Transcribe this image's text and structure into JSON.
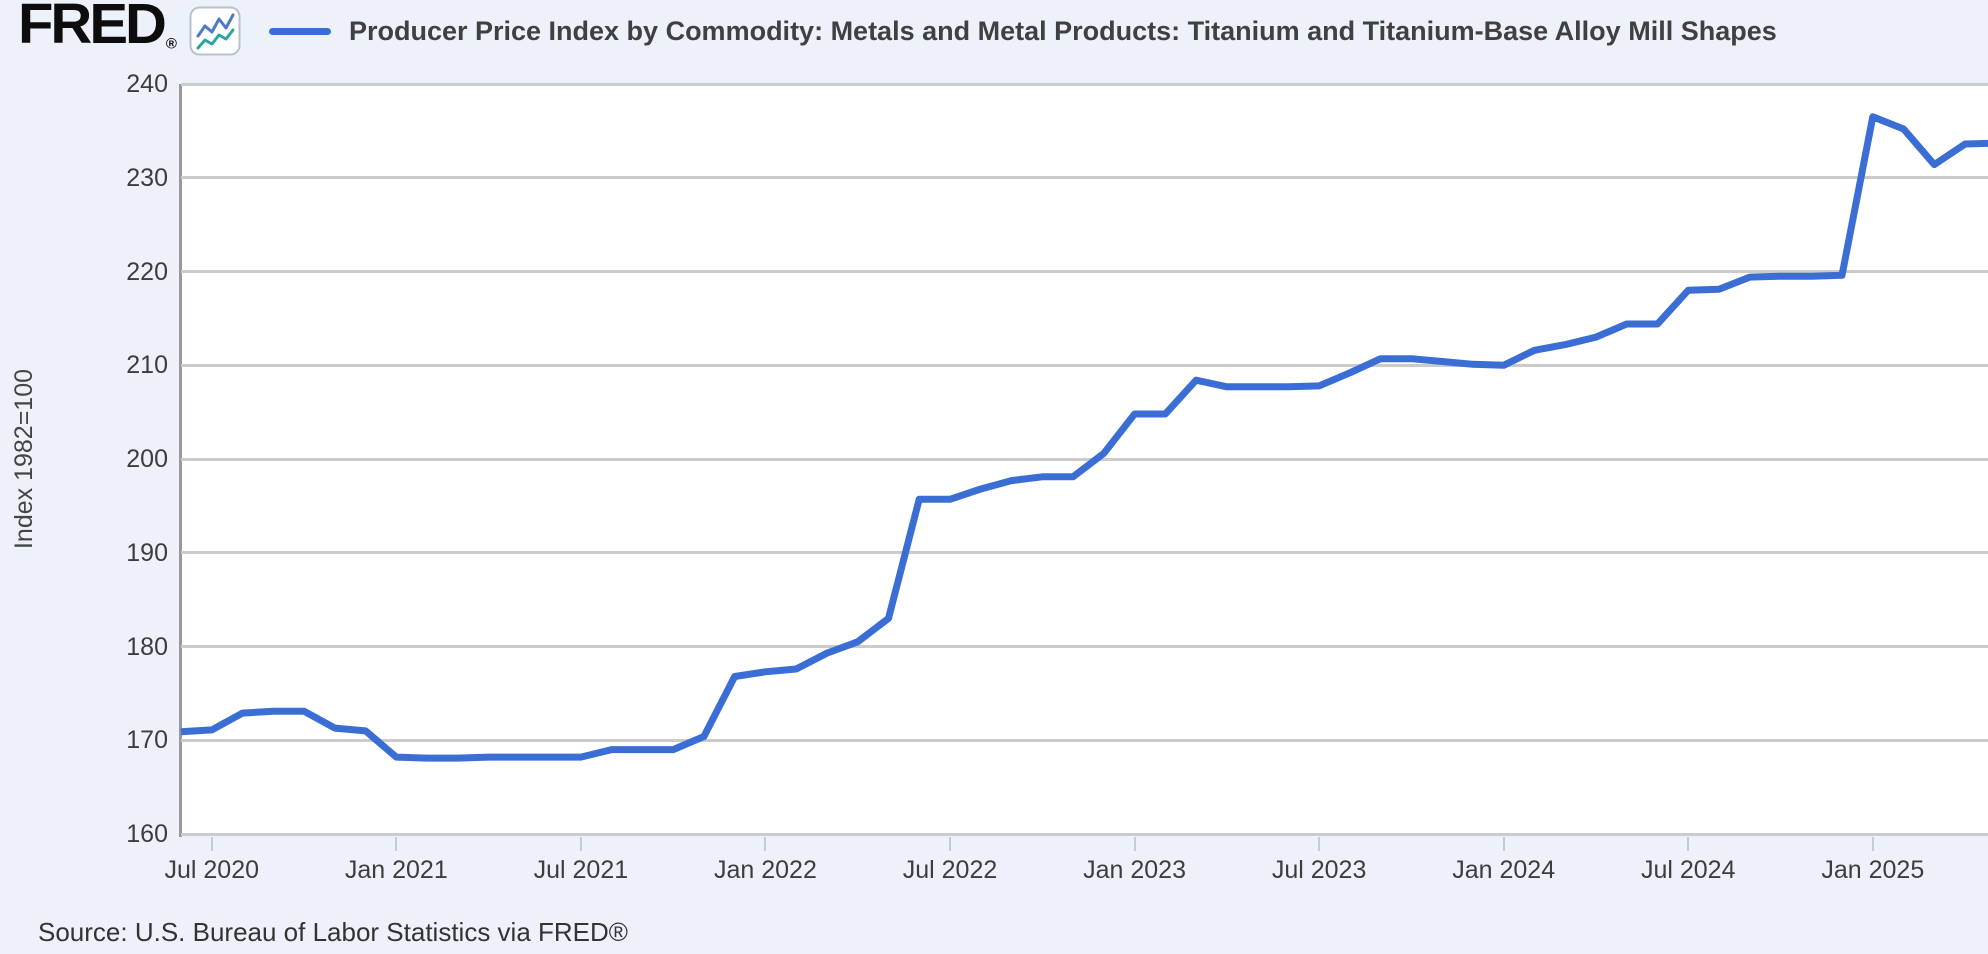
{
  "header": {
    "logo_text": "FRED",
    "registered_mark": "®",
    "series_title": "Producer Price Index by Commodity: Metals and Metal Products: Titanium and Titanium-Base Alloy Mill Shapes"
  },
  "y_axis": {
    "title": "Index 1982=100"
  },
  "source": {
    "text": "Source: U.S. Bureau of Labor Statistics via FRED®"
  },
  "colors": {
    "line": "#3b6ed4",
    "grid": "#cbcbcb",
    "axis_border": "#97979c",
    "background": "#edf2fa",
    "plot_background": "#ffffff",
    "tick": "#c3cbd6",
    "text_dark": "#3d3d3d",
    "logo_icon_blue": "#4e79c8",
    "logo_icon_teal": "#2aa5a0"
  },
  "chart_data": {
    "type": "line",
    "title": "Producer Price Index by Commodity: Metals and Metal Products: Titanium and Titanium-Base Alloy Mill Shapes",
    "xlabel": "",
    "ylabel": "Index 1982=100",
    "ylim": [
      160,
      240
    ],
    "grid": "horizontal",
    "legend_position": "top-left",
    "y_ticks": [
      240,
      230,
      220,
      210,
      200,
      190,
      180,
      170,
      160
    ],
    "x": [
      "2020-06",
      "2020-07",
      "2020-08",
      "2020-09",
      "2020-10",
      "2020-11",
      "2020-12",
      "2021-01",
      "2021-02",
      "2021-03",
      "2021-04",
      "2021-05",
      "2021-06",
      "2021-07",
      "2021-08",
      "2021-09",
      "2021-10",
      "2021-11",
      "2021-12",
      "2022-01",
      "2022-02",
      "2022-03",
      "2022-04",
      "2022-05",
      "2022-06",
      "2022-07",
      "2022-08",
      "2022-09",
      "2022-10",
      "2022-11",
      "2022-12",
      "2023-01",
      "2023-02",
      "2023-03",
      "2023-04",
      "2023-05",
      "2023-06",
      "2023-07",
      "2023-08",
      "2023-09",
      "2023-10",
      "2023-11",
      "2023-12",
      "2024-01",
      "2024-02",
      "2024-03",
      "2024-04",
      "2024-05",
      "2024-06",
      "2024-07",
      "2024-08",
      "2024-09",
      "2024-10",
      "2024-11",
      "2024-12",
      "2025-01",
      "2025-02",
      "2025-03",
      "2025-04",
      "2025-05"
    ],
    "values": [
      170.9,
      171.1,
      172.9,
      173.1,
      173.1,
      171.3,
      171.0,
      168.2,
      168.1,
      168.1,
      168.2,
      168.2,
      168.2,
      168.2,
      169.0,
      169.0,
      169.0,
      170.4,
      176.8,
      177.3,
      177.6,
      179.3,
      180.5,
      183.0,
      195.7,
      195.7,
      196.8,
      197.7,
      198.1,
      198.1,
      200.6,
      204.8,
      204.8,
      208.4,
      207.7,
      207.7,
      207.7,
      207.8,
      209.2,
      210.7,
      210.7,
      210.4,
      210.1,
      210.0,
      211.6,
      212.2,
      213.0,
      214.4,
      214.4,
      218.0,
      218.1,
      219.4,
      219.5,
      219.5,
      219.6,
      236.5,
      235.2,
      231.4,
      233.6,
      233.7
    ],
    "x_tick_labels": [
      {
        "label": "Jul 2020",
        "month_index": 1
      },
      {
        "label": "Jan 2021",
        "month_index": 7
      },
      {
        "label": "Jul 2021",
        "month_index": 13
      },
      {
        "label": "Jan 2022",
        "month_index": 19
      },
      {
        "label": "Jul 2022",
        "month_index": 25
      },
      {
        "label": "Jan 2023",
        "month_index": 31
      },
      {
        "label": "Jul 2023",
        "month_index": 37
      },
      {
        "label": "Jan 2024",
        "month_index": 43
      },
      {
        "label": "Jul 2024",
        "month_index": 49
      },
      {
        "label": "Jan 2025",
        "month_index": 55
      }
    ]
  }
}
